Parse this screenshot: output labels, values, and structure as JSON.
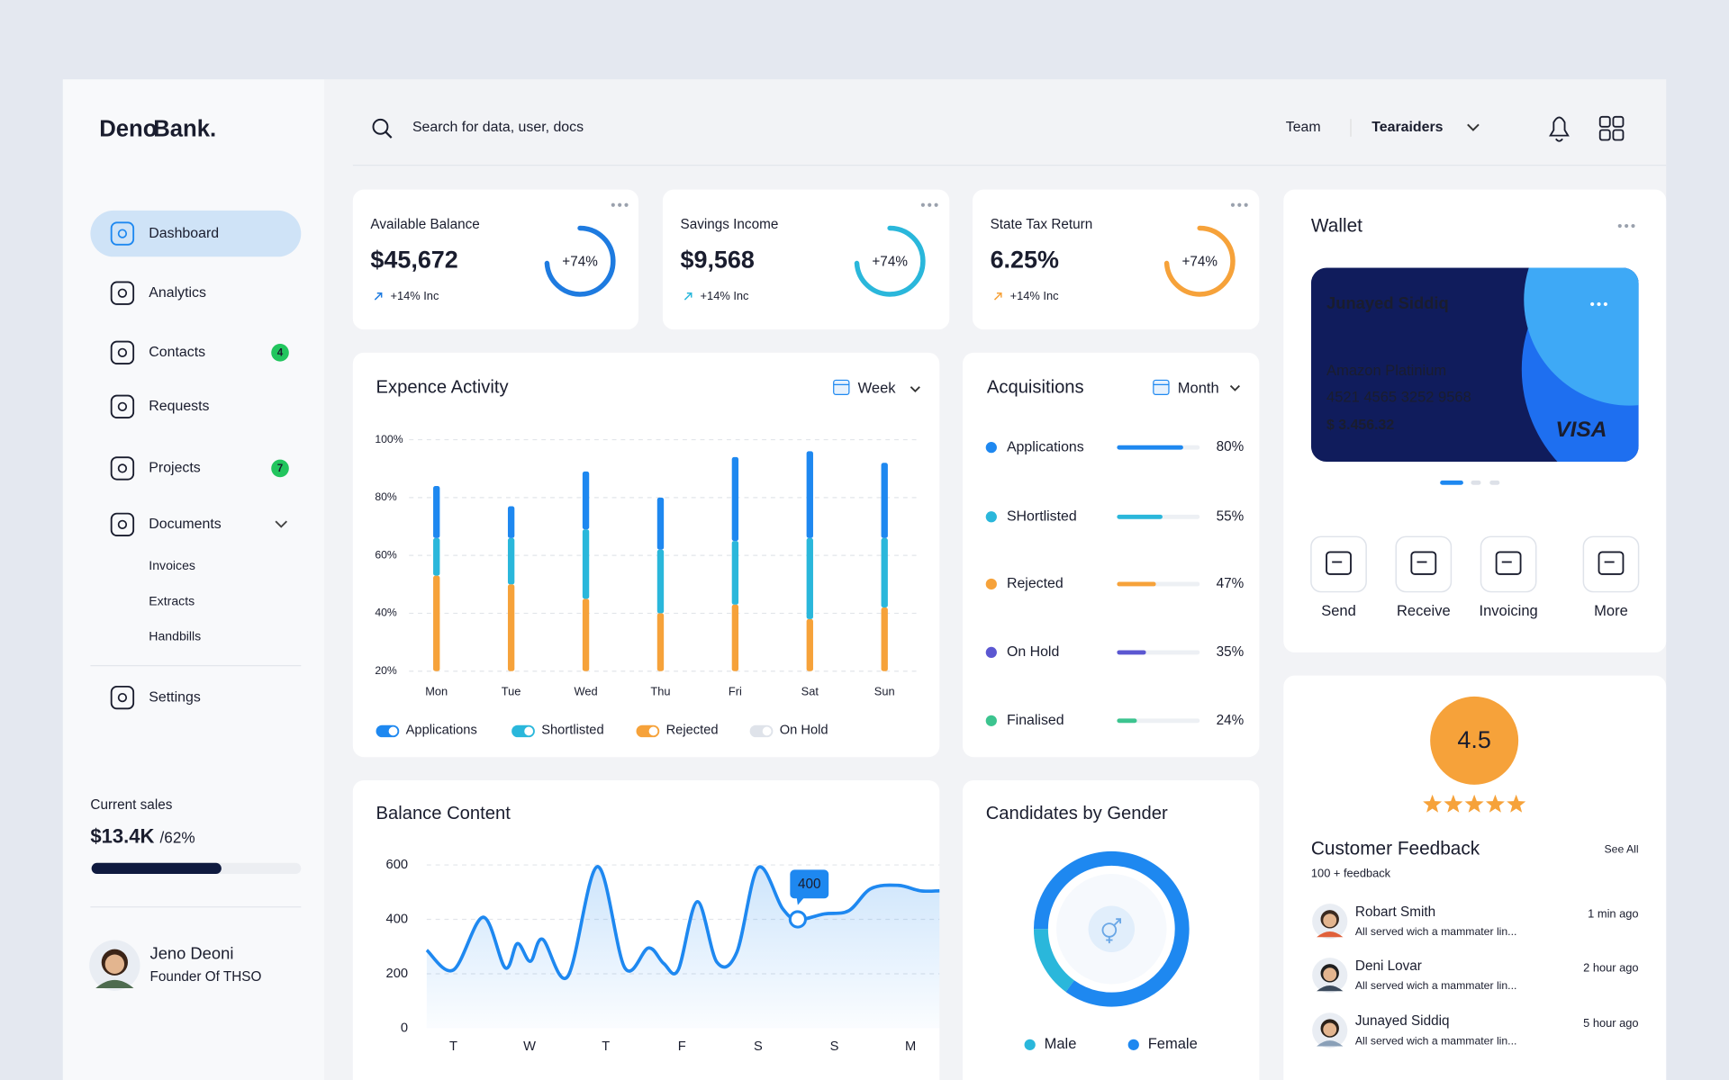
{
  "sidebar": {
    "logo": [
      "Deno",
      "Bank."
    ],
    "nav": [
      {
        "label": "Dashboard"
      },
      {
        "label": "Analytics"
      },
      {
        "label": "Contacts",
        "badge": 4
      },
      {
        "label": "Requests"
      },
      {
        "label": "Projects",
        "badge": 7
      },
      {
        "label": "Documents"
      }
    ],
    "subnav": [
      "Invoices",
      "Extracts",
      "Handbills"
    ],
    "settings": "Settings",
    "sales": {
      "label": "Current sales",
      "value": "$13.4K",
      "percent_label": "/62%",
      "percent": 62
    },
    "user": {
      "name": "Jeno Deoni",
      "role": "Founder Of THSO"
    }
  },
  "header": {
    "search": "Search for data, user, docs",
    "team": "Team",
    "workspace": "Tearaiders"
  },
  "stats": [
    {
      "title": "Available Balance",
      "value": "$45,672",
      "ring": 74,
      "ring_label": "+74%",
      "change": "+14% Inc",
      "color": "#1e7be0"
    },
    {
      "title": "Savings Income",
      "value": "$9,568",
      "ring": 74,
      "ring_label": "+74%",
      "change": "+14% Inc",
      "color": "#2ab7db"
    },
    {
      "title": "State Tax  Return",
      "value": "6.25%",
      "ring": 74,
      "ring_label": "+74%",
      "change": "+14% Inc",
      "color": "#f6a23a"
    }
  ],
  "chart_data": [
    {
      "type": "bar",
      "stacked": true,
      "title": "Expence Activity",
      "period": "Week",
      "categories": [
        "Mon",
        "Tue",
        "Wed",
        "Thu",
        "Fri",
        "Sat",
        "Sun"
      ],
      "ylim": [
        20,
        100
      ],
      "yticks": [
        {
          "value": 100,
          "label": "100%"
        },
        {
          "value": 80,
          "label": "80%"
        },
        {
          "value": 60,
          "label": "60%"
        },
        {
          "value": 40,
          "label": "40%"
        },
        {
          "value": 20,
          "label": "20%"
        }
      ],
      "grid": true,
      "series": [
        {
          "name": "Applications",
          "color": "#1e88f0",
          "values": [
            18,
            11,
            20,
            18,
            29,
            30,
            26
          ]
        },
        {
          "name": "Shortlisted",
          "color": "#2ab7db",
          "values": [
            13,
            16,
            24,
            22,
            22,
            28,
            24
          ]
        },
        {
          "name": "Rejected",
          "color": "#f6a23a",
          "values": [
            33,
            30,
            25,
            20,
            23,
            18,
            22
          ]
        },
        {
          "name": "On Hold",
          "color": "#dfe3ea",
          "values": [
            null,
            null,
            null,
            null,
            null,
            null,
            null
          ]
        }
      ]
    },
    {
      "type": "progress",
      "title": "Acquisitions",
      "period": "Month",
      "categories": [
        "Applications",
        "SHortlisted",
        "Rejected",
        "On Hold",
        "Finalised"
      ],
      "values": [
        80,
        55,
        47,
        35,
        24
      ],
      "value_labels": [
        "80%",
        "55%",
        "47%",
        "35%",
        "24%"
      ],
      "colors": [
        "#1e88f0",
        "#2ab7db",
        "#f6a23a",
        "#5b57d1",
        "#3cc48f"
      ],
      "xlim": [
        0,
        100
      ]
    },
    {
      "type": "line",
      "title": "Balance Content",
      "x": [
        -0.35,
        0,
        0.39,
        0.68,
        0.84,
        1.01,
        1.17,
        1.5,
        1.89,
        2.25,
        2.56,
        2.76,
        2.95,
        3.2,
        3.46,
        3.72,
        4,
        4.32,
        4.52,
        4.87,
        5.19,
        5.48,
        5.84,
        6.13,
        6.38
      ],
      "values": [
        287,
        214,
        408,
        222,
        311,
        246,
        327,
        190,
        594,
        222,
        295,
        238,
        214,
        465,
        242,
        279,
        590,
        440,
        400,
        420,
        432,
        513,
        525,
        505,
        505
      ],
      "color": "#1e88f0",
      "highlight_index": 18,
      "xlim": [
        -0.35,
        6.38
      ],
      "xticks": [
        {
          "value": 0,
          "label": "T"
        },
        {
          "value": 1,
          "label": "W"
        },
        {
          "value": 2,
          "label": "T"
        },
        {
          "value": 3,
          "label": "F"
        },
        {
          "value": 4,
          "label": "S"
        },
        {
          "value": 5,
          "label": "S"
        },
        {
          "value": 6,
          "label": "M"
        }
      ],
      "ylim": [
        0,
        640
      ],
      "yticks": [
        0,
        200,
        400,
        600
      ],
      "grid": true
    },
    {
      "type": "donut",
      "title": "Candidates by Gender",
      "categories": [
        "Male",
        "Female"
      ],
      "values": [
        15,
        85
      ],
      "colors": [
        "#2ab7db",
        "#1e88f0"
      ]
    }
  ],
  "wallet": {
    "title": "Wallet",
    "card": {
      "holder": "Junayed Siddiq",
      "type": "Amazon Platinium",
      "number": "4521 4565 3252 9568",
      "balance": "$ 3.456.32",
      "brand": "VISA"
    },
    "actions": [
      "Send",
      "Receive",
      "Invoicing",
      "More"
    ]
  },
  "rating": {
    "value": 4.5,
    "stars": 5
  },
  "feedback": {
    "title": "Customer Feedback",
    "see_all": "See All",
    "count": "100 + feedback",
    "items": [
      {
        "name": "Robart Smith",
        "text": "All served wich a mammater lin...",
        "time": "1 min ago"
      },
      {
        "name": "Deni Lovar",
        "text": "All served wich a mammater lin...",
        "time": "2 hour ago"
      },
      {
        "name": "Junayed Siddiq",
        "text": "All served wich a mammater lin...",
        "time": "5 hour ago"
      }
    ]
  }
}
